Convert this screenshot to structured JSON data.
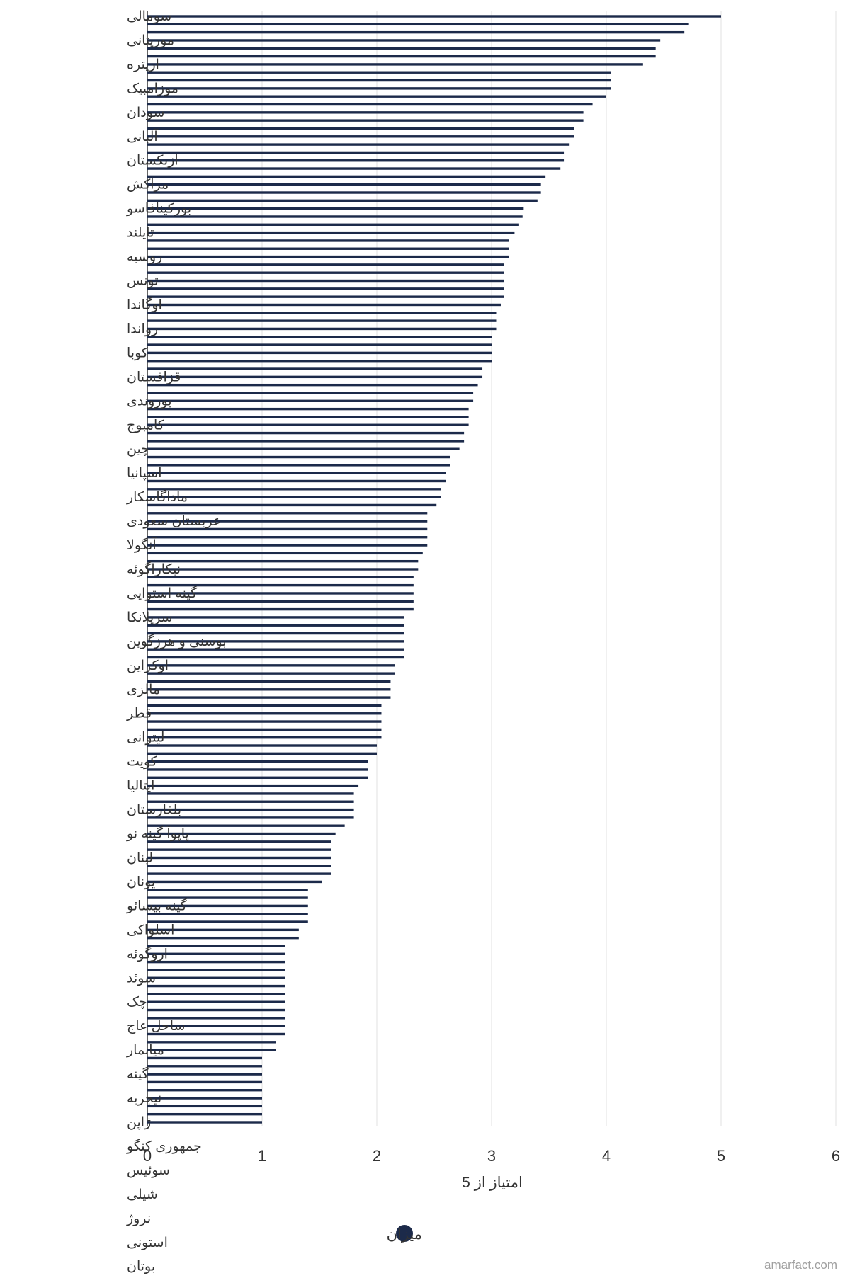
{
  "chart_data": {
    "type": "bar",
    "orientation": "horizontal",
    "xlabel": "امتیاز از 5",
    "xlim": [
      0,
      6
    ],
    "xticks": [
      0,
      1,
      2,
      3,
      4,
      5,
      6
    ],
    "grid": true,
    "legend_position": "bottom-center",
    "series": [
      {
        "name": "میزان",
        "color": "#1c2a4a"
      }
    ],
    "labeled_categories": [
      "سومالی",
      "موریتانی",
      "اریتره",
      "موزامبیک",
      "سودان",
      "آلبانی",
      "ازبکستان",
      "مراکش",
      "بورکینافاسو",
      "تایلند",
      "روسیه",
      "تونس",
      "اوگاندا",
      "رواندا",
      "کوبا",
      "قزاقستان",
      "بوروندی",
      "کامبوج",
      "چین",
      "اسپانیا",
      "ماداگاسکار",
      "عربستان سعودی",
      "آنگولا",
      "نیکاراگوئه",
      "گینه استوایی",
      "سریلانکا",
      "بوسنی و هرزگوین",
      "اوکراین",
      "مالزی",
      "قطر",
      "لیتوانی",
      "کویت",
      "ایتالیا",
      "بلغارستان",
      "پاپوآ گینه نو",
      "لبنان",
      "یونان",
      "گینه بیسائو",
      "اسلواکی",
      "اروگوئه",
      "سوئد",
      "چک",
      "ساحل عاج",
      "میانمار",
      "گینه",
      "نیجریه",
      "ژاپن",
      "جمهوری کنگو",
      "سوئیس",
      "شیلی",
      "نروژ",
      "استونی",
      "بوتان"
    ],
    "values": [
      5.0,
      4.72,
      4.68,
      4.47,
      4.43,
      4.43,
      4.32,
      4.04,
      4.04,
      4.04,
      4.0,
      3.88,
      3.8,
      3.8,
      3.72,
      3.72,
      3.68,
      3.63,
      3.63,
      3.6,
      3.47,
      3.43,
      3.43,
      3.4,
      3.28,
      3.27,
      3.24,
      3.2,
      3.15,
      3.15,
      3.15,
      3.11,
      3.11,
      3.11,
      3.11,
      3.11,
      3.08,
      3.04,
      3.04,
      3.04,
      3.0,
      3.0,
      3.0,
      3.0,
      2.92,
      2.92,
      2.88,
      2.84,
      2.84,
      2.8,
      2.8,
      2.8,
      2.76,
      2.76,
      2.72,
      2.64,
      2.64,
      2.6,
      2.6,
      2.56,
      2.56,
      2.52,
      2.44,
      2.44,
      2.44,
      2.44,
      2.44,
      2.4,
      2.36,
      2.36,
      2.32,
      2.32,
      2.32,
      2.32,
      2.32,
      2.24,
      2.24,
      2.24,
      2.24,
      2.24,
      2.24,
      2.16,
      2.16,
      2.12,
      2.12,
      2.12,
      2.04,
      2.04,
      2.04,
      2.04,
      2.04,
      2.0,
      2.0,
      1.92,
      1.92,
      1.92,
      1.84,
      1.8,
      1.8,
      1.8,
      1.8,
      1.72,
      1.64,
      1.6,
      1.6,
      1.6,
      1.6,
      1.6,
      1.52,
      1.4,
      1.4,
      1.4,
      1.4,
      1.4,
      1.32,
      1.32,
      1.2,
      1.2,
      1.2,
      1.2,
      1.2,
      1.2,
      1.2,
      1.2,
      1.2,
      1.2,
      1.2,
      1.2,
      1.12,
      1.12,
      1.0,
      1.0,
      1.0,
      1.0,
      1.0,
      1.0,
      1.0,
      1.0,
      1.0
    ]
  },
  "watermark": "amarfact.com"
}
